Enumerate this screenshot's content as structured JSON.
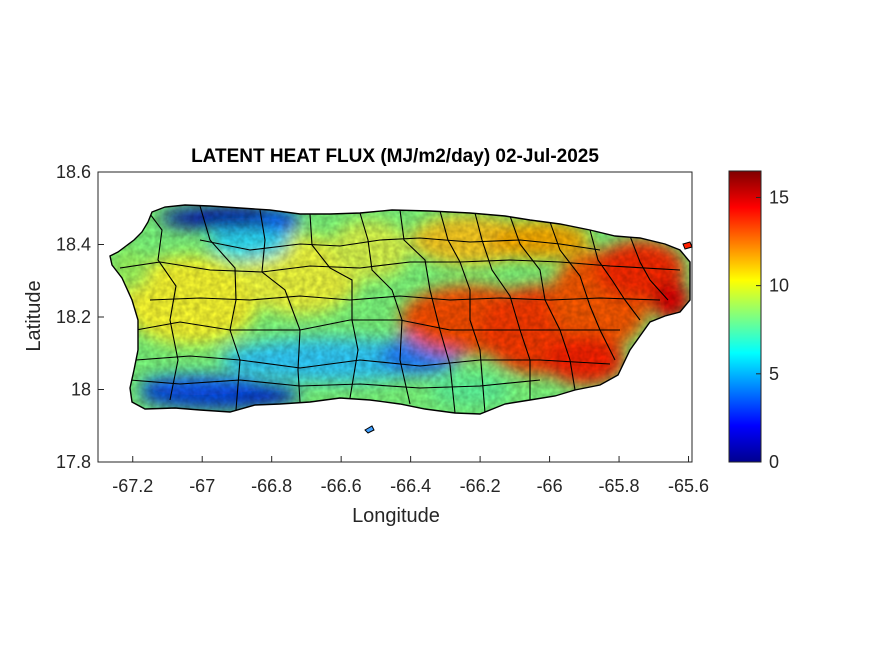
{
  "chart_data": {
    "type": "heatmap",
    "title": "LATENT HEAT FLUX (MJ/m2/day) 02-Jul-2025",
    "xlabel": "Longitude",
    "ylabel": "Latitude",
    "xlim": [
      -67.3,
      -65.59
    ],
    "ylim": [
      17.8,
      18.6
    ],
    "xticks": [
      -67.2,
      -67,
      -66.8,
      -66.6,
      -66.4,
      -66.2,
      -66,
      -65.8,
      -65.6
    ],
    "xtick_labels": [
      "-67.2",
      "-67",
      "-66.8",
      "-66.6",
      "-66.4",
      "-66.2",
      "-66",
      "-65.8",
      "-65.6"
    ],
    "yticks": [
      17.8,
      18,
      18.2,
      18.4,
      18.6
    ],
    "ytick_labels": [
      "17.8",
      "18",
      "18.2",
      "18.4",
      "18.6"
    ],
    "colorbar": {
      "colormap": "jet",
      "clim": [
        0,
        16.5
      ],
      "ticks": [
        0,
        5,
        10,
        15
      ],
      "tick_labels": [
        "0",
        "5",
        "10",
        "15"
      ]
    },
    "grid": false,
    "region": "Puerto Rico (municipality boundaries)",
    "approximate_field_zones": [
      {
        "area": "north-west coast near -67.1 to -66.85, 18.45-18.5",
        "value": 1.5
      },
      {
        "area": "south-west coast near -67.2 to -66.75, 17.95-18.0",
        "value": 1.5
      },
      {
        "area": "south-central belt near -66.7 to -66.4, 18.05-18.1",
        "value": 5
      },
      {
        "area": "west and central interior",
        "value": 9
      },
      {
        "area": "east-central interior near -66.3 to -66.0, 18.1-18.25",
        "value": 13.5
      },
      {
        "area": "east coast near -65.8 to -65.65, 18.2-18.35",
        "value": 14.5
      }
    ]
  },
  "colors": {
    "boundary": "#000000",
    "axis": "#262626",
    "background": "#ffffff"
  }
}
